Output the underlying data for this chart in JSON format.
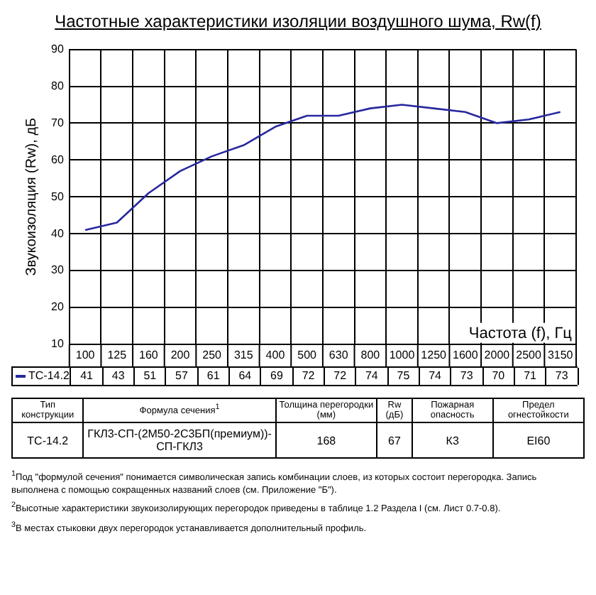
{
  "chart_data": {
    "type": "line",
    "title": "Частотные характеристики изоляции воздушного шума, Rw(f)",
    "xlabel": "Частота (f), Гц",
    "ylabel": "Звукоизоляция (Rw), дБ",
    "categories": [
      "100",
      "125",
      "160",
      "200",
      "250",
      "315",
      "400",
      "500",
      "630",
      "800",
      "1000",
      "1250",
      "1600",
      "2000",
      "2500",
      "3150"
    ],
    "series": [
      {
        "name": "ТС-14.2",
        "color": "#2828a0",
        "values": [
          41,
          43,
          51,
          57,
          61,
          64,
          69,
          72,
          72,
          74,
          75,
          74,
          73,
          70,
          71,
          73
        ]
      }
    ],
    "ylim": [
      10,
      90
    ],
    "yticks": [
      10,
      20,
      30,
      40,
      50,
      60,
      70,
      80,
      90
    ],
    "grid": true,
    "legend": "bottom",
    "data_labels": true,
    "marker": "none",
    "line_style": "solid",
    "annotations": [
      "Тип конструкции",
      "Формула сечения$^{1}$",
      "Толщина перегородки (мм)",
      "Rw (дБ)",
      "Пожарная опасность",
      "Предел огнестойкости",
      "ТС-14.2",
      "ГКЛ3-СП-(2М50-2С3БП(премиум))-СП-ГКЛ3",
      "168",
      "67",
      "К3",
      "EI60",
      "$^{1}$Под \"формулой сечения\" понимается символическая запись комбинации слоев, из которых состоит перегородка. Запись выполнена с помощью сокращенных названий слоев (см. Приложение \"Б\").",
      "$^{2}$Высотные характеристики звукоизолирующих перегородок приведены в таблице 1.2 Раздела I (см. Лист 0.7-0.8).",
      "$^{3}$В местах стыковки двух перегородок устанавливается дополнительный профиль."
    ]
  }
}
